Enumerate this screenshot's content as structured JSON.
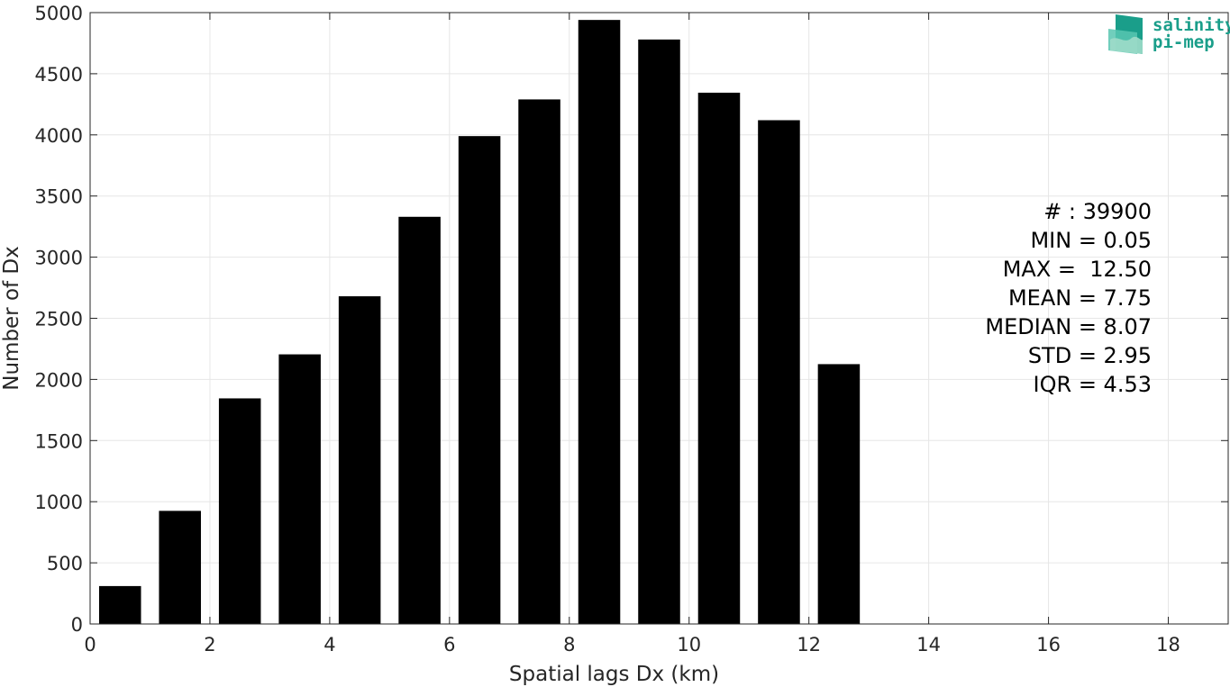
{
  "chart_data": {
    "type": "bar",
    "xlabel": "Spatial lags Dx (km)",
    "ylabel": "Number of Dx",
    "xlim": [
      0,
      19
    ],
    "ylim": [
      0,
      5000
    ],
    "xticks": [
      0,
      2,
      4,
      6,
      8,
      10,
      12,
      14,
      16,
      18
    ],
    "yticks": [
      0,
      500,
      1000,
      1500,
      2000,
      2500,
      3000,
      3500,
      4000,
      4500,
      5000
    ],
    "grid": true,
    "bar_width": 0.7,
    "bar_color": "#000000",
    "x": [
      0.5,
      1.5,
      2.5,
      3.5,
      4.5,
      5.5,
      6.5,
      7.5,
      8.5,
      9.5,
      10.5,
      11.5,
      12.5
    ],
    "values": [
      310,
      925,
      1845,
      2205,
      2680,
      3330,
      3990,
      4290,
      4940,
      4780,
      4345,
      4120,
      2125
    ]
  },
  "stats": [
    "# : 39900",
    "MIN = 0.05",
    "MAX =  12.50",
    "MEAN = 7.75",
    "MEDIAN = 8.07",
    "STD = 2.95",
    "IQR = 4.53"
  ],
  "logo": {
    "line1": "salinity",
    "line2": "pi-mep",
    "color": "#1a9e8a"
  }
}
